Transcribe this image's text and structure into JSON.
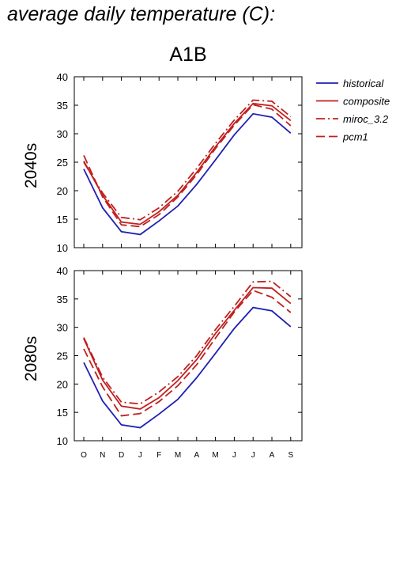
{
  "page": {
    "title": "average daily temperature (C):",
    "scenario": "A1B"
  },
  "colors": {
    "historical": "#1f1fb4",
    "projection": "#c0201f",
    "axis": "#000000"
  },
  "legend": {
    "items": [
      {
        "label": "historical",
        "dash": "solid",
        "color": "#1f1fb4"
      },
      {
        "label": "composite",
        "dash": "solid",
        "color": "#c0201f"
      },
      {
        "label": "miroc_3.2",
        "dash": "dashdot",
        "color": "#c0201f"
      },
      {
        "label": "pcm1",
        "dash": "dash",
        "color": "#c0201f"
      }
    ]
  },
  "chart_data": [
    {
      "type": "line",
      "row_label": "2040s",
      "categories": [
        "O",
        "N",
        "D",
        "J",
        "F",
        "M",
        "A",
        "M",
        "J",
        "J",
        "A",
        "S"
      ],
      "ylim": [
        10,
        40
      ],
      "yticks": [
        10,
        15,
        20,
        25,
        30,
        35,
        40
      ],
      "series": [
        {
          "name": "historical",
          "dash": "solid",
          "color": "#1f1fb4",
          "values": [
            23.8,
            17.0,
            12.8,
            12.3,
            14.7,
            17.3,
            21.1,
            25.4,
            29.8,
            33.5,
            32.9,
            30.1
          ]
        },
        {
          "name": "composite",
          "dash": "solid",
          "color": "#c0201f",
          "values": [
            25.2,
            19.2,
            14.5,
            14.1,
            16.3,
            19.2,
            23.2,
            27.7,
            31.8,
            35.3,
            34.9,
            32.3
          ]
        },
        {
          "name": "miroc_3.2",
          "dash": "dashdot",
          "color": "#c0201f",
          "values": [
            25.0,
            19.6,
            15.3,
            14.9,
            17.0,
            19.9,
            23.9,
            28.3,
            32.4,
            35.9,
            35.7,
            33.0
          ]
        },
        {
          "name": "pcm1",
          "dash": "dash",
          "color": "#c0201f",
          "values": [
            26.2,
            18.9,
            14.0,
            13.7,
            15.8,
            18.9,
            22.8,
            27.4,
            31.5,
            35.1,
            34.3,
            31.4
          ]
        }
      ]
    },
    {
      "type": "line",
      "row_label": "2080s",
      "categories": [
        "O",
        "N",
        "D",
        "J",
        "F",
        "M",
        "A",
        "M",
        "J",
        "J",
        "A",
        "S"
      ],
      "ylim": [
        10,
        40
      ],
      "yticks": [
        10,
        15,
        20,
        25,
        30,
        35,
        40
      ],
      "series": [
        {
          "name": "historical",
          "dash": "solid",
          "color": "#1f1fb4",
          "values": [
            23.8,
            17.0,
            12.8,
            12.3,
            14.7,
            17.3,
            21.1,
            25.4,
            29.8,
            33.5,
            32.9,
            30.1
          ]
        },
        {
          "name": "composite",
          "dash": "solid",
          "color": "#c0201f",
          "values": [
            28.0,
            20.7,
            16.1,
            15.6,
            17.6,
            20.6,
            24.3,
            28.9,
            33.0,
            37.0,
            36.9,
            34.2
          ]
        },
        {
          "name": "miroc_3.2",
          "dash": "dashdot",
          "color": "#c0201f",
          "values": [
            28.2,
            21.2,
            16.8,
            16.5,
            18.6,
            21.3,
            25.0,
            29.6,
            33.7,
            38.0,
            38.1,
            35.4
          ]
        },
        {
          "name": "pcm1",
          "dash": "dash",
          "color": "#c0201f",
          "values": [
            26.2,
            19.5,
            14.4,
            14.8,
            16.9,
            19.7,
            23.4,
            28.1,
            32.7,
            36.5,
            35.3,
            32.6
          ]
        }
      ]
    }
  ]
}
